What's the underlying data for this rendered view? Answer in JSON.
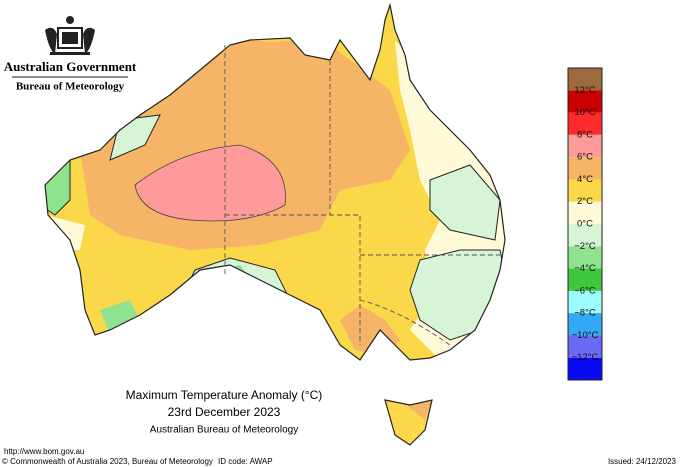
{
  "header": {
    "government": "Australian Government",
    "agency": "Bureau of Meteorology"
  },
  "map_title": {
    "line1": "Maximum Temperature Anomaly (°C)",
    "line2": "23rd December 2023",
    "line3": "Australian Bureau of Meteorology"
  },
  "legend": {
    "colors": [
      "#9c6a3c",
      "#cc0000",
      "#ff2a2a",
      "#ff9a9a",
      "#f5b466",
      "#fbd84a",
      "#fffad8",
      "#d6f4d6",
      "#8fe38f",
      "#3ec63e",
      "#9ffcfc",
      "#35a8f5",
      "#6a6af5",
      "#0a0af5"
    ],
    "labels": [
      "12°C",
      "10°C",
      "8°C",
      "6°C",
      "4°C",
      "2°C",
      "0°C",
      "−2°C",
      "−4°C",
      "−6°C",
      "−8°C",
      "−10°C",
      "−12°C"
    ]
  },
  "footer": {
    "url": "http://www.bom.gov.au",
    "copyright": "© Commonwealth of Australia 2023, Bureau of Meteorology",
    "id_code": "ID code: AWAP",
    "issued": "Issued: 24/12/2023"
  }
}
